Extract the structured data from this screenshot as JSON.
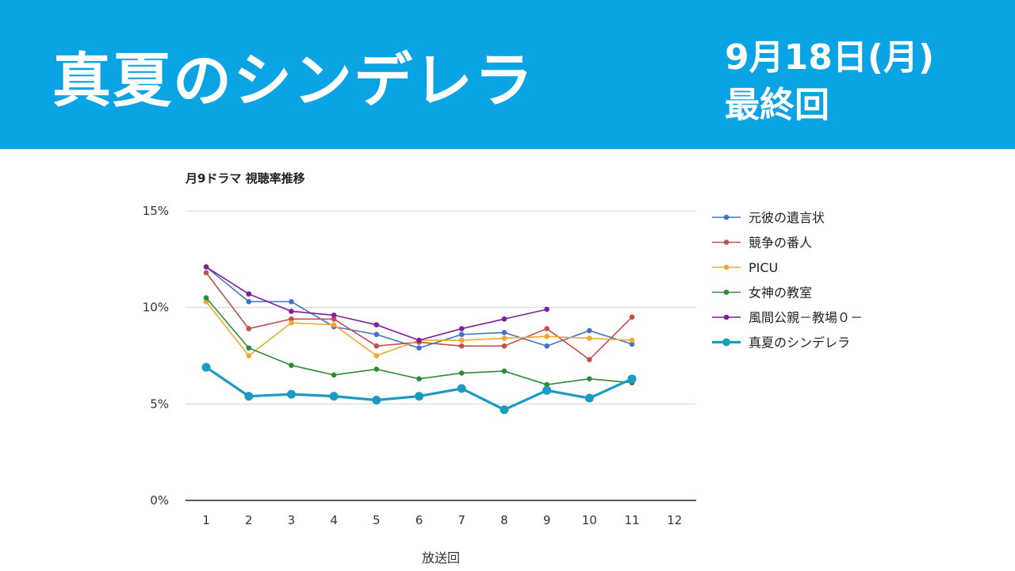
{
  "banner": {
    "title": "真夏のシンデレラ",
    "date": "9月18日(月)",
    "subtitle": "最終回",
    "background": "#0aa3e3"
  },
  "chart_data": {
    "type": "line",
    "title": "月9ドラマ 視聴率推移",
    "xlabel": "放送回",
    "ylabel": "",
    "x": [
      1,
      2,
      3,
      4,
      5,
      6,
      7,
      8,
      9,
      10,
      11,
      12
    ],
    "ylim": [
      0,
      15
    ],
    "yticks": [
      "0%",
      "5%",
      "10%",
      "15%"
    ],
    "grid": true,
    "legend_position": "right",
    "series": [
      {
        "name": "元彼の遺言状",
        "color": "#4472c4",
        "values": [
          12.1,
          10.3,
          10.3,
          9.0,
          8.6,
          7.9,
          8.6,
          8.7,
          8.0,
          8.8,
          8.1,
          null
        ]
      },
      {
        "name": "競争の番人",
        "color": "#c0504d",
        "values": [
          11.8,
          8.9,
          9.4,
          9.4,
          8.0,
          8.2,
          8.0,
          8.0,
          8.9,
          7.3,
          9.5,
          null
        ]
      },
      {
        "name": "PICU",
        "color": "#f0a830",
        "values": [
          10.3,
          7.5,
          9.2,
          9.1,
          7.5,
          8.3,
          8.3,
          8.4,
          8.5,
          8.4,
          8.3,
          null
        ]
      },
      {
        "name": "女神の教室",
        "color": "#2e8b3a",
        "values": [
          10.5,
          7.9,
          7.0,
          6.5,
          6.8,
          6.3,
          6.6,
          6.7,
          6.0,
          6.3,
          6.1,
          null
        ]
      },
      {
        "name": "風間公親－教場０－",
        "color": "#7f1f9c",
        "values": [
          12.1,
          10.7,
          9.8,
          9.6,
          9.1,
          8.3,
          8.9,
          9.4,
          9.9,
          null,
          null,
          null
        ]
      },
      {
        "name": "真夏のシンデレラ",
        "color": "#1b9bc4",
        "values": [
          6.9,
          5.4,
          5.5,
          5.4,
          5.2,
          5.4,
          5.8,
          4.7,
          5.7,
          5.3,
          6.3,
          null
        ],
        "emphasis": true
      }
    ]
  }
}
